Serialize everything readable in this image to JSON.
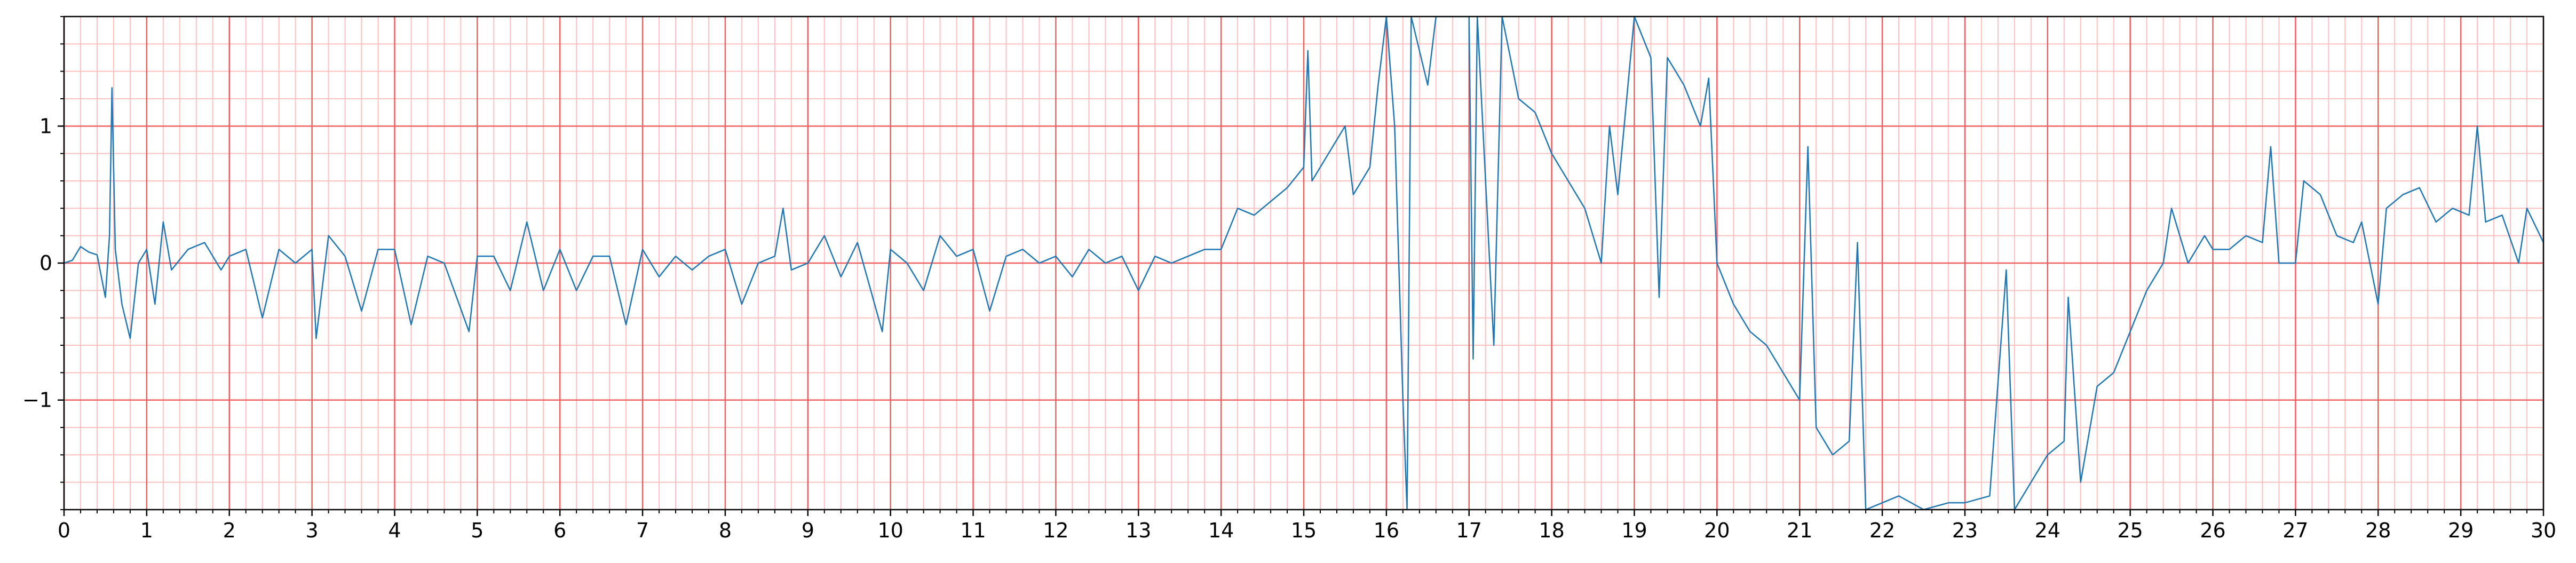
{
  "chart_data": {
    "type": "line",
    "x": [
      0,
      0.1,
      0.2,
      0.3,
      0.4,
      0.5,
      0.55,
      0.58,
      0.62,
      0.7,
      0.8,
      0.9,
      1.0,
      1.1,
      1.2,
      1.3,
      1.5,
      1.7,
      1.9,
      2.0,
      2.2,
      2.4,
      2.6,
      2.8,
      3.0,
      3.05,
      3.2,
      3.4,
      3.6,
      3.8,
      4.0,
      4.2,
      4.4,
      4.6,
      4.9,
      5.0,
      5.2,
      5.4,
      5.6,
      5.8,
      6.0,
      6.2,
      6.4,
      6.6,
      6.8,
      7.0,
      7.2,
      7.4,
      7.6,
      7.8,
      8.0,
      8.2,
      8.4,
      8.6,
      8.7,
      8.8,
      9.0,
      9.2,
      9.4,
      9.6,
      9.9,
      10.0,
      10.2,
      10.4,
      10.6,
      10.8,
      11.0,
      11.2,
      11.4,
      11.6,
      11.8,
      12.0,
      12.2,
      12.4,
      12.6,
      12.8,
      13.0,
      13.2,
      13.4,
      13.6,
      13.8,
      14.0,
      14.2,
      14.4,
      14.6,
      14.8,
      15.0,
      15.05,
      15.1,
      15.3,
      15.5,
      15.6,
      15.8,
      15.9,
      16.0,
      16.1,
      16.2,
      16.25,
      16.3,
      16.5,
      16.6,
      17.0,
      17.05,
      17.1,
      17.3,
      17.4,
      17.6,
      17.8,
      18.0,
      18.2,
      18.4,
      18.6,
      18.7,
      18.8,
      19.0,
      19.2,
      19.3,
      19.4,
      19.6,
      19.8,
      19.9,
      20.0,
      20.2,
      20.4,
      20.6,
      20.8,
      21.0,
      21.1,
      21.2,
      21.4,
      21.6,
      21.7,
      21.8,
      22.0,
      22.2,
      22.5,
      22.8,
      23.0,
      23.3,
      23.5,
      23.6,
      23.8,
      24.0,
      24.2,
      24.25,
      24.4,
      24.6,
      24.8,
      25.0,
      25.2,
      25.4,
      25.5,
      25.7,
      25.9,
      26.0,
      26.2,
      26.4,
      26.6,
      26.7,
      26.8,
      27.0,
      27.1,
      27.3,
      27.5,
      27.7,
      27.8,
      28.0,
      28.1,
      28.3,
      28.5,
      28.7,
      28.9,
      29.1,
      29.2,
      29.3,
      29.5,
      29.7,
      29.8,
      30.0
    ],
    "series": [
      {
        "color": "#1f77b4",
        "values": [
          0,
          0.02,
          0.12,
          0.08,
          0.06,
          -0.25,
          0.2,
          1.28,
          0.1,
          -0.3,
          -0.55,
          0.0,
          0.1,
          -0.3,
          0.3,
          -0.05,
          0.1,
          0.15,
          -0.05,
          0.05,
          0.1,
          -0.4,
          0.1,
          0.0,
          0.1,
          -0.55,
          0.2,
          0.05,
          -0.35,
          0.1,
          0.1,
          -0.45,
          0.05,
          0.0,
          -0.5,
          0.05,
          0.05,
          -0.2,
          0.3,
          -0.2,
          0.1,
          -0.2,
          0.05,
          0.05,
          -0.45,
          0.1,
          -0.1,
          0.05,
          -0.05,
          0.05,
          0.1,
          -0.3,
          0.0,
          0.05,
          0.4,
          -0.05,
          0.0,
          0.2,
          -0.1,
          0.15,
          -0.5,
          0.1,
          0.0,
          -0.2,
          0.2,
          0.05,
          0.1,
          -0.35,
          0.05,
          0.1,
          0.0,
          0.05,
          -0.1,
          0.1,
          0.0,
          0.05,
          -0.2,
          0.05,
          0.0,
          0.05,
          0.1,
          0.1,
          0.4,
          0.35,
          0.45,
          0.55,
          0.7,
          1.55,
          0.6,
          0.8,
          1.0,
          0.5,
          0.7,
          1.3,
          1.8,
          1.0,
          -1.0,
          -1.8,
          1.8,
          1.3,
          1.8,
          1.8,
          -0.7,
          1.8,
          -0.6,
          1.8,
          1.2,
          1.1,
          0.8,
          0.6,
          0.4,
          0.0,
          1.0,
          0.5,
          1.8,
          1.5,
          -0.25,
          1.5,
          1.3,
          1.0,
          1.35,
          0.0,
          -0.3,
          -0.5,
          -0.6,
          -0.8,
          -1.0,
          0.85,
          -1.2,
          -1.4,
          -1.3,
          0.15,
          -1.8,
          -1.75,
          -1.7,
          -1.8,
          -1.75,
          -1.75,
          -1.7,
          -0.05,
          -1.8,
          -1.6,
          -1.4,
          -1.3,
          -0.25,
          -1.6,
          -0.9,
          -0.8,
          -0.5,
          -0.2,
          0.0,
          0.4,
          0.0,
          0.2,
          0.1,
          0.1,
          0.2,
          0.15,
          0.85,
          0.0,
          0.0,
          0.6,
          0.5,
          0.2,
          0.15,
          0.3,
          -0.3,
          0.4,
          0.5,
          0.55,
          0.3,
          0.4,
          0.35,
          1.0,
          0.3,
          0.35,
          0.0,
          0.4,
          0.15
        ]
      }
    ],
    "xlim": [
      0,
      30
    ],
    "ylim": [
      -1.8,
      1.8
    ],
    "xticks": [
      0,
      1,
      2,
      3,
      4,
      5,
      6,
      7,
      8,
      9,
      10,
      11,
      12,
      13,
      14,
      15,
      16,
      17,
      18,
      19,
      20,
      21,
      22,
      23,
      24,
      25,
      26,
      27,
      28,
      29,
      30
    ],
    "yticks": [
      {
        "value": -1,
        "label": "−1"
      },
      0,
      1
    ],
    "grid": true,
    "minor_step": 0.2
  }
}
